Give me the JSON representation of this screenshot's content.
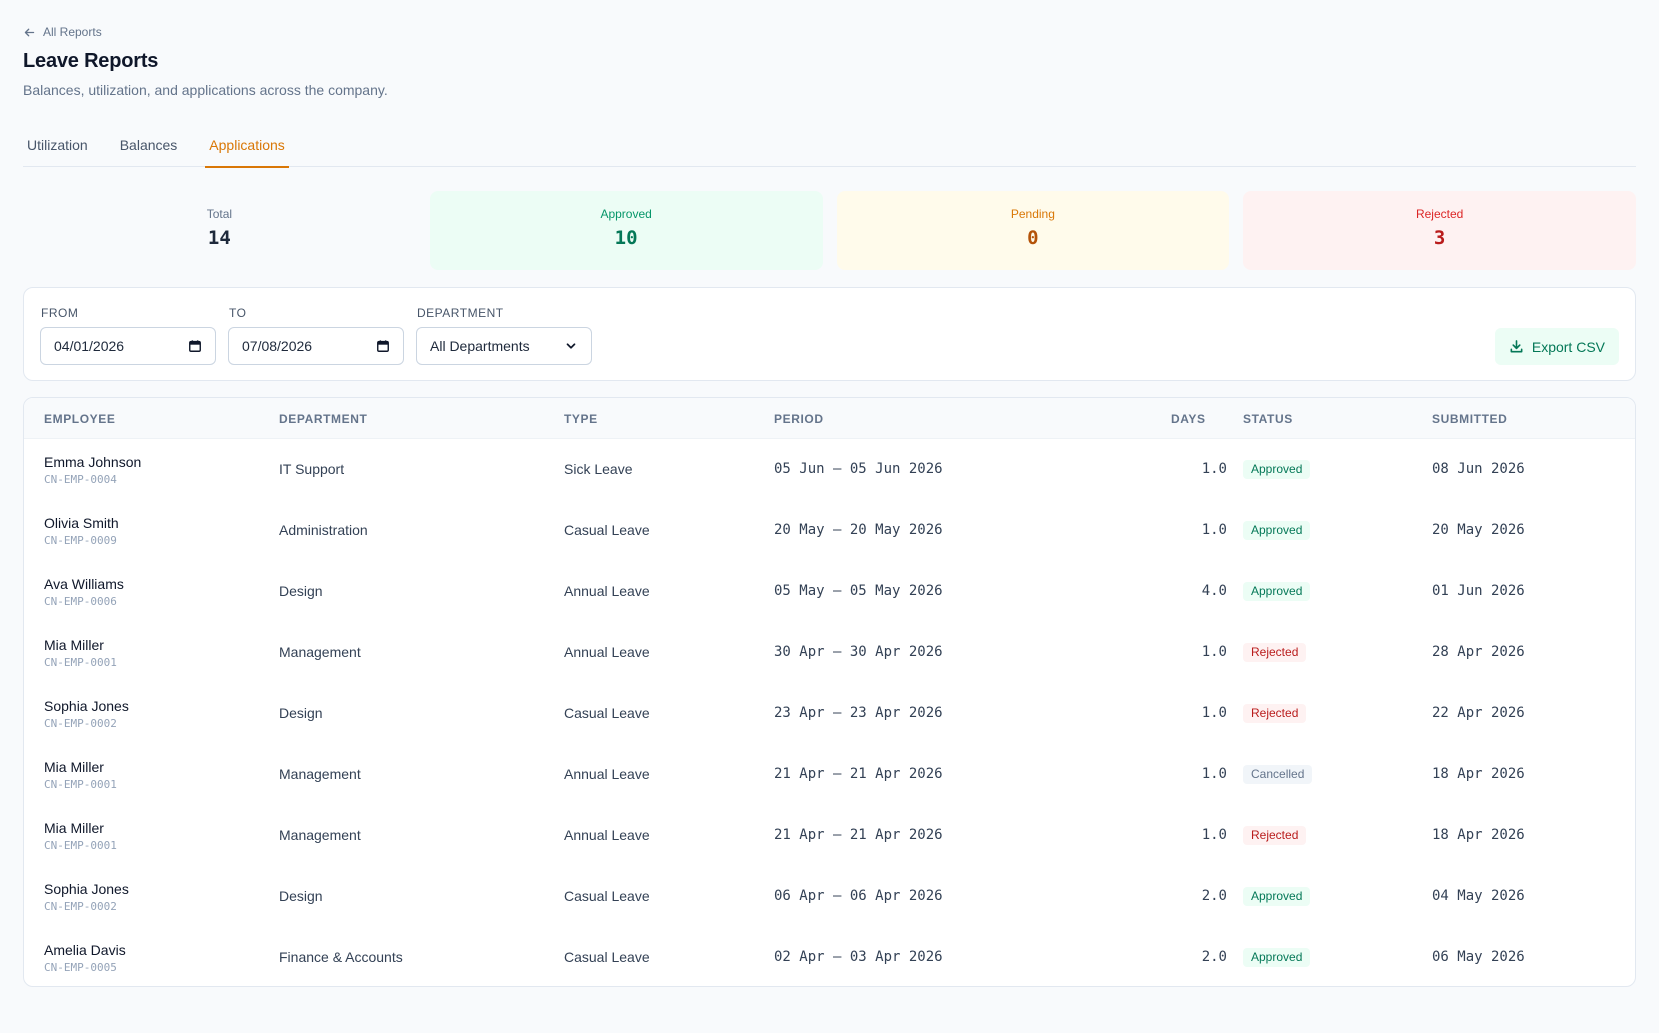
{
  "nav": {
    "back_label": "All Reports"
  },
  "header": {
    "title": "Leave Reports",
    "subtitle": "Balances, utilization, and applications across the company."
  },
  "tabs": [
    {
      "label": "Utilization",
      "active": false
    },
    {
      "label": "Balances",
      "active": false
    },
    {
      "label": "Applications",
      "active": true
    }
  ],
  "stats": {
    "total": {
      "label": "Total",
      "value": "14"
    },
    "approved": {
      "label": "Approved",
      "value": "10"
    },
    "pending": {
      "label": "Pending",
      "value": "0"
    },
    "rejected": {
      "label": "Rejected",
      "value": "3"
    }
  },
  "filters": {
    "from": {
      "label": "FROM",
      "value": "04/01/2026"
    },
    "to": {
      "label": "TO",
      "value": "07/08/2026"
    },
    "department": {
      "label": "DEPARTMENT",
      "value": "All Departments"
    },
    "export_label": "Export CSV"
  },
  "table": {
    "headers": {
      "employee": "EMPLOYEE",
      "department": "DEPARTMENT",
      "type": "TYPE",
      "period": "PERIOD",
      "days": "DAYS",
      "status": "STATUS",
      "submitted": "SUBMITTED"
    },
    "rows": [
      {
        "name": "Emma Johnson",
        "id": "CN-EMP-0004",
        "department": "IT Support",
        "type": "Sick Leave",
        "period": "05 Jun – 05 Jun 2026",
        "days": "1.0",
        "status": "Approved",
        "submitted": "08 Jun 2026"
      },
      {
        "name": "Olivia Smith",
        "id": "CN-EMP-0009",
        "department": "Administration",
        "type": "Casual Leave",
        "period": "20 May – 20 May 2026",
        "days": "1.0",
        "status": "Approved",
        "submitted": "20 May 2026"
      },
      {
        "name": "Ava Williams",
        "id": "CN-EMP-0006",
        "department": "Design",
        "type": "Annual Leave",
        "period": "05 May – 05 May 2026",
        "days": "4.0",
        "status": "Approved",
        "submitted": "01 Jun 2026"
      },
      {
        "name": "Mia Miller",
        "id": "CN-EMP-0001",
        "department": "Management",
        "type": "Annual Leave",
        "period": "30 Apr – 30 Apr 2026",
        "days": "1.0",
        "status": "Rejected",
        "submitted": "28 Apr 2026"
      },
      {
        "name": "Sophia Jones",
        "id": "CN-EMP-0002",
        "department": "Design",
        "type": "Casual Leave",
        "period": "23 Apr – 23 Apr 2026",
        "days": "1.0",
        "status": "Rejected",
        "submitted": "22 Apr 2026"
      },
      {
        "name": "Mia Miller",
        "id": "CN-EMP-0001",
        "department": "Management",
        "type": "Annual Leave",
        "period": "21 Apr – 21 Apr 2026",
        "days": "1.0",
        "status": "Cancelled",
        "submitted": "18 Apr 2026"
      },
      {
        "name": "Mia Miller",
        "id": "CN-EMP-0001",
        "department": "Management",
        "type": "Annual Leave",
        "period": "21 Apr – 21 Apr 2026",
        "days": "1.0",
        "status": "Rejected",
        "submitted": "18 Apr 2026"
      },
      {
        "name": "Sophia Jones",
        "id": "CN-EMP-0002",
        "department": "Design",
        "type": "Casual Leave",
        "period": "06 Apr – 06 Apr 2026",
        "days": "2.0",
        "status": "Approved",
        "submitted": "04 May 2026"
      },
      {
        "name": "Amelia Davis",
        "id": "CN-EMP-0005",
        "department": "Finance & Accounts",
        "type": "Casual Leave",
        "period": "02 Apr – 03 Apr 2026",
        "days": "2.0",
        "status": "Approved",
        "submitted": "06 May 2026"
      }
    ]
  },
  "colors": {
    "accent": "#d97706",
    "approved": "#047857",
    "rejected": "#b91c1c",
    "cancelled": "#64748b"
  },
  "icons": {
    "back": "arrow-left-icon",
    "calendar": "calendar-icon",
    "export": "download-icon"
  }
}
